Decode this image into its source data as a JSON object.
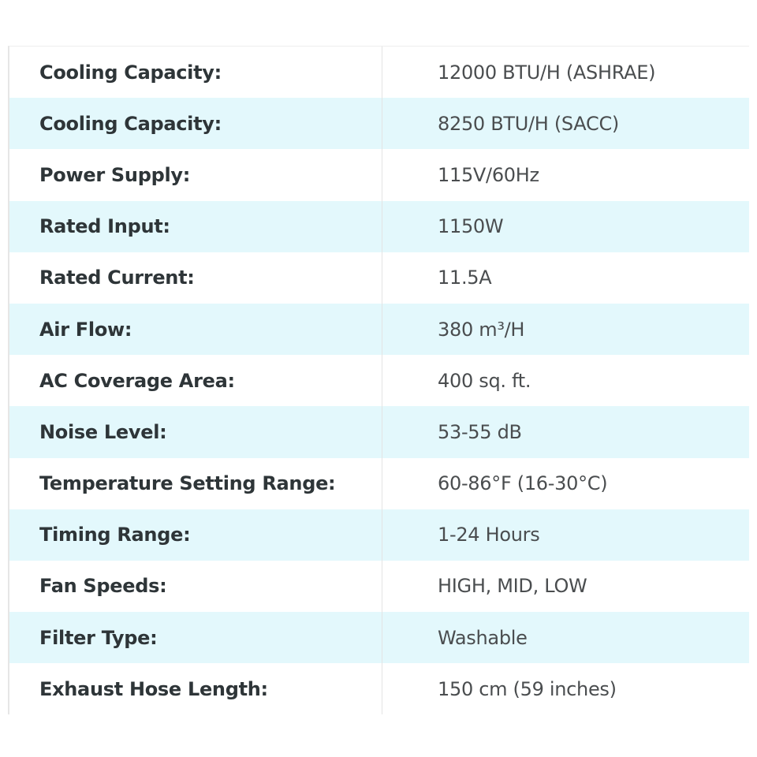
{
  "colors": {
    "stripe": "#e3f8fc",
    "label_text": "#2e3538",
    "value_text": "#4a4d4f"
  },
  "specs": [
    {
      "label": "Cooling Capacity:",
      "value": "12000 BTU/H (ASHRAE)"
    },
    {
      "label": "Cooling Capacity:",
      "value": "8250 BTU/H (SACC)"
    },
    {
      "label": "Power Supply:",
      "value": "115V/60Hz"
    },
    {
      "label": "Rated Input:",
      "value": "1150W"
    },
    {
      "label": "Rated Current:",
      "value": "11.5A"
    },
    {
      "label": "Air Flow:",
      "value": "380 m³/H"
    },
    {
      "label": "AC Coverage Area:",
      "value": "400 sq. ft."
    },
    {
      "label": "Noise Level:",
      "value": "53-55 dB"
    },
    {
      "label": "Temperature Setting Range:",
      "value": "60-86°F (16-30°C)"
    },
    {
      "label": "Timing Range:",
      "value": "1-24 Hours"
    },
    {
      "label": "Fan Speeds:",
      "value": "HIGH, MID, LOW"
    },
    {
      "label": "Filter Type:",
      "value": "Washable"
    },
    {
      "label": "Exhaust Hose Length:",
      "value": "150 cm (59 inches)"
    }
  ]
}
